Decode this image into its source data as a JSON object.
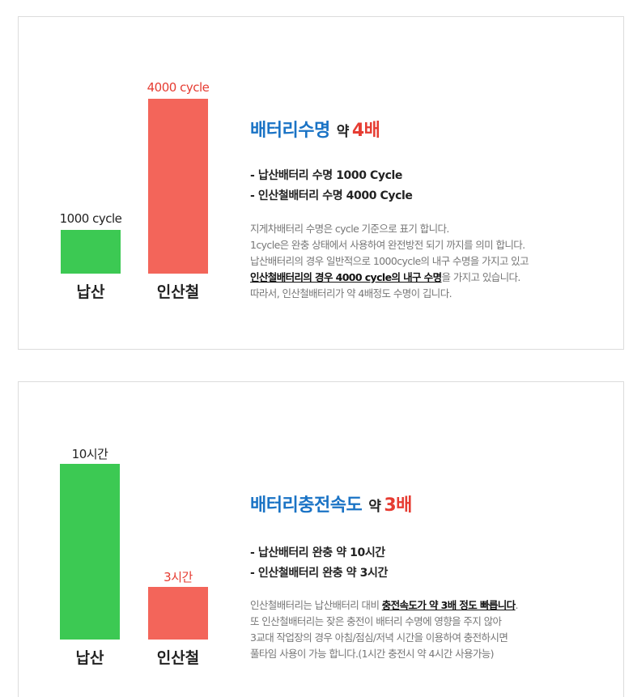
{
  "colors": {
    "lead_acid": "#3cc953",
    "lithium": "#f3655a",
    "heading_blue": "#1a73c5",
    "heading_red": "#e63c32"
  },
  "chart_data": [
    {
      "type": "bar",
      "categories": [
        "납산",
        "인산철"
      ],
      "values": [
        1000,
        4000
      ],
      "value_labels": [
        "1000 cycle",
        "4000 cycle"
      ],
      "ylim": [
        0,
        4000
      ],
      "grid": false
    },
    {
      "type": "bar",
      "categories": [
        "납산",
        "인산철"
      ],
      "values": [
        10,
        3
      ],
      "value_labels": [
        "10시간",
        "3시간"
      ],
      "ylim": [
        0,
        10
      ],
      "grid": false
    }
  ],
  "section1": {
    "heading_main": "배터리수명",
    "heading_about": "약",
    "heading_mult": "4배",
    "bullets": [
      "-  납산배터리 수명 1000 Cycle",
      "-  인산철배터리 수명 4000 Cycle"
    ],
    "desc_line1": "지게차배터리 수명은  cycle 기준으로 표기 합니다.",
    "desc_line2": "1cycle은 완충 상태에서 사용하여 완전방전 되기 까지를 의미 합니다.",
    "desc_line3": "납산배터리의 경우 일반적으로 1000cycle의 내구 수명을 가지고 있고",
    "desc_line4_emph": "인산철배터리의 경우 4000 cycle의 내구 수명",
    "desc_line4_rest": "을 가지고 있습니다.",
    "desc_line5": "따라서, 인산철배터리가 약 4배정도 수명이 깁니다."
  },
  "section2": {
    "heading_main": "배터리충전속도",
    "heading_about": "약",
    "heading_mult": "3배",
    "bullets": [
      "-  납산배터리 완충 약 10시간",
      "-  인산철배터리 완충 약 3시간"
    ],
    "desc_line1_pre": "인산철배터리는 납산배터리 대비 ",
    "desc_line1_emph": "충전속도가 약 3배 정도 빠릅니다",
    "desc_line1_post": ".",
    "desc_line2": "또 인산철배터리는 잦은 충전이 배터리 수명에 영향을 주지 않아",
    "desc_line3": "3교대 작업장의 경우 아침/점심/저녁 시간을 이용하여 충전하시면",
    "desc_line4": "풀타임 사용이 가능 합니다.(1시간 충전시 약 4시간 사용가능)"
  }
}
